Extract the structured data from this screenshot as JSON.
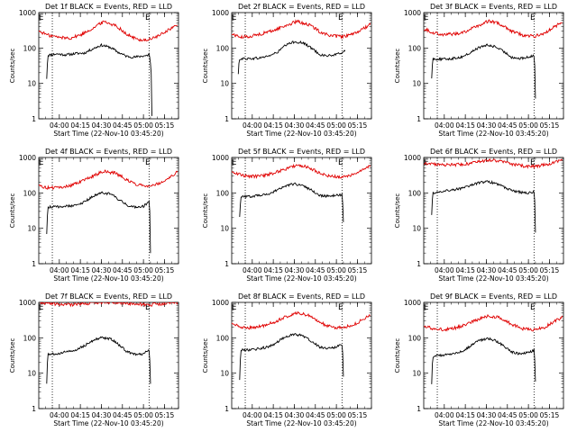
{
  "chart_data": [
    {
      "type": "line",
      "title": "Det 1f BLACK = Events, RED = LLD",
      "ylabel": "Counts/sec",
      "xlabel": "Start Time (22-Nov-10 03:45:20)",
      "yscale": "log",
      "ylim": [
        1,
        1000
      ],
      "xlim": [
        "03:45:20",
        "05:25:00"
      ],
      "x_ticks": [
        "04:00",
        "04:15",
        "04:30",
        "04:45",
        "05:00",
        "05:15"
      ],
      "y_ticks": [
        "1",
        "10",
        "100",
        "1000"
      ],
      "markers": [
        {
          "label": "E",
          "x": "03:47"
        },
        {
          "label": "E",
          "x": "05:03"
        }
      ],
      "vlines": [
        "03:55",
        "05:04"
      ],
      "series": [
        {
          "name": "BLACK = Events",
          "color": "#000000",
          "x": [
            "03:51",
            "03:52",
            "03:58",
            "04:05",
            "04:12",
            "04:18",
            "04:24",
            "04:30",
            "04:36",
            "04:42",
            "04:48",
            "04:54",
            "05:00",
            "05:03",
            "05:04",
            "05:06"
          ],
          "y": [
            14,
            62,
            68,
            64,
            70,
            72,
            95,
            120,
            105,
            75,
            58,
            55,
            60,
            62,
            70,
            1.2
          ]
        },
        {
          "name": "RED = LLD",
          "color": "#e00000",
          "x": [
            "03:45",
            "03:52",
            "04:00",
            "04:08",
            "04:16",
            "04:24",
            "04:32",
            "04:40",
            "04:48",
            "04:56",
            "05:04",
            "05:12",
            "05:18",
            "05:24"
          ],
          "y": [
            300,
            230,
            200,
            190,
            240,
            360,
            560,
            430,
            240,
            170,
            170,
            230,
            330,
            430
          ]
        }
      ]
    },
    {
      "type": "line",
      "title": "Det 2f BLACK = Events, RED = LLD",
      "ylabel": "Counts/sec",
      "xlabel": "Start Time (22-Nov-10 03:45:20)",
      "yscale": "log",
      "ylim": [
        1,
        1000
      ],
      "xlim": [
        "03:45:20",
        "05:25:00"
      ],
      "x_ticks": [
        "04:00",
        "04:15",
        "04:30",
        "04:45",
        "05:00",
        "05:15"
      ],
      "y_ticks": [
        "1",
        "10",
        "100",
        "1000"
      ],
      "markers": [
        {
          "label": "E",
          "x": "03:47"
        },
        {
          "label": "E",
          "x": "05:03"
        }
      ],
      "vlines": [
        "03:55",
        "05:04"
      ],
      "series": [
        {
          "name": "BLACK = Events",
          "color": "#000000",
          "x": [
            "03:50",
            "03:51",
            "03:58",
            "04:05",
            "04:12",
            "04:18",
            "04:24",
            "04:30",
            "04:36",
            "04:42",
            "04:48",
            "04:54",
            "05:00",
            "05:04",
            "05:06"
          ],
          "y": [
            18,
            50,
            50,
            52,
            60,
            75,
            120,
            150,
            140,
            100,
            65,
            60,
            65,
            75,
            80
          ]
        },
        {
          "name": "RED = LLD",
          "color": "#e00000",
          "x": [
            "03:45",
            "03:52",
            "04:00",
            "04:08",
            "04:16",
            "04:24",
            "04:32",
            "04:40",
            "04:48",
            "04:56",
            "05:04",
            "05:12",
            "05:18",
            "05:24"
          ],
          "y": [
            250,
            200,
            220,
            260,
            320,
            430,
            560,
            460,
            290,
            220,
            210,
            240,
            330,
            450
          ]
        }
      ]
    },
    {
      "type": "line",
      "title": "Det 3f BLACK = Events, RED = LLD",
      "ylabel": "Counts/sec",
      "xlabel": "Start Time (22-Nov-10 03:45:20)",
      "yscale": "log",
      "ylim": [
        1,
        1000
      ],
      "xlim": [
        "03:45:20",
        "05:25:00"
      ],
      "x_ticks": [
        "04:00",
        "04:15",
        "04:30",
        "04:45",
        "05:00",
        "05:15"
      ],
      "y_ticks": [
        "1",
        "10",
        "100",
        "1000"
      ],
      "markers": [
        {
          "label": "E",
          "x": "03:47"
        },
        {
          "label": "E",
          "x": "05:03"
        }
      ],
      "vlines": [
        "03:55",
        "05:04"
      ],
      "series": [
        {
          "name": "BLACK = Events",
          "color": "#000000",
          "x": [
            "03:51",
            "03:52",
            "03:58",
            "04:05",
            "04:12",
            "04:18",
            "04:24",
            "04:30",
            "04:36",
            "04:42",
            "04:48",
            "04:54",
            "05:00",
            "05:04",
            "05:05"
          ],
          "y": [
            15,
            50,
            48,
            50,
            55,
            70,
            100,
            120,
            110,
            80,
            55,
            50,
            55,
            60,
            4
          ]
        },
        {
          "name": "RED = LLD",
          "color": "#e00000",
          "x": [
            "03:45",
            "03:52",
            "04:00",
            "04:08",
            "04:16",
            "04:24",
            "04:32",
            "04:40",
            "04:48",
            "04:56",
            "05:04",
            "05:12",
            "05:18",
            "05:24"
          ],
          "y": [
            350,
            270,
            240,
            250,
            300,
            420,
            580,
            470,
            300,
            230,
            210,
            270,
            380,
            520
          ]
        }
      ]
    },
    {
      "type": "line",
      "title": "Det 4f BLACK = Events, RED = LLD",
      "ylabel": "Counts/sec",
      "xlabel": "Start Time (22-Nov-10 03:45:20)",
      "yscale": "log",
      "ylim": [
        1,
        1000
      ],
      "xlim": [
        "03:45:20",
        "05:25:00"
      ],
      "x_ticks": [
        "04:00",
        "04:15",
        "04:30",
        "04:45",
        "05:00",
        "05:15"
      ],
      "y_ticks": [
        "1",
        "10",
        "100",
        "1000"
      ],
      "markers": [
        {
          "label": "E",
          "x": "03:47"
        },
        {
          "label": "E",
          "x": "05:03"
        }
      ],
      "vlines": [
        "03:55",
        "05:04"
      ],
      "series": [
        {
          "name": "BLACK = Events",
          "color": "#000000",
          "x": [
            "03:51",
            "03:52",
            "03:58",
            "04:05",
            "04:12",
            "04:18",
            "04:24",
            "04:30",
            "04:36",
            "04:42",
            "04:48",
            "04:54",
            "05:00",
            "05:04",
            "05:05"
          ],
          "y": [
            7,
            40,
            40,
            42,
            45,
            55,
            80,
            100,
            95,
            65,
            45,
            40,
            42,
            55,
            2
          ]
        },
        {
          "name": "RED = LLD",
          "color": "#e00000",
          "x": [
            "03:45",
            "03:52",
            "04:00",
            "04:08",
            "04:16",
            "04:24",
            "04:32",
            "04:40",
            "04:48",
            "04:56",
            "05:04",
            "05:12",
            "05:18",
            "05:24"
          ],
          "y": [
            160,
            140,
            140,
            160,
            210,
            300,
            410,
            360,
            230,
            170,
            160,
            190,
            270,
            380
          ]
        }
      ]
    },
    {
      "type": "line",
      "title": "Det 5f BLACK = Events, RED = LLD",
      "ylabel": "Counts/sec",
      "xlabel": "Start Time (22-Nov-10 03:45:20)",
      "yscale": "log",
      "ylim": [
        1,
        1000
      ],
      "xlim": [
        "03:45:20",
        "05:25:00"
      ],
      "x_ticks": [
        "04:00",
        "04:15",
        "04:30",
        "04:45",
        "05:00",
        "05:15"
      ],
      "y_ticks": [
        "1",
        "10",
        "100",
        "1000"
      ],
      "markers": [
        {
          "label": "E",
          "x": "03:47"
        },
        {
          "label": "E",
          "x": "05:03"
        }
      ],
      "vlines": [
        "03:55",
        "05:04"
      ],
      "series": [
        {
          "name": "BLACK = Events",
          "color": "#000000",
          "x": [
            "03:51",
            "03:52",
            "03:58",
            "04:05",
            "04:12",
            "04:18",
            "04:24",
            "04:30",
            "04:36",
            "04:42",
            "04:48",
            "04:54",
            "05:00",
            "05:04",
            "05:05"
          ],
          "y": [
            20,
            80,
            80,
            85,
            95,
            120,
            160,
            180,
            160,
            120,
            85,
            80,
            85,
            90,
            15
          ]
        },
        {
          "name": "RED = LLD",
          "color": "#e00000",
          "x": [
            "03:45",
            "03:52",
            "04:00",
            "04:08",
            "04:16",
            "04:24",
            "04:32",
            "04:40",
            "04:48",
            "04:56",
            "05:04",
            "05:12",
            "05:18",
            "05:24"
          ],
          "y": [
            400,
            320,
            290,
            310,
            370,
            480,
            620,
            520,
            360,
            290,
            280,
            330,
            450,
            600
          ]
        }
      ]
    },
    {
      "type": "line",
      "title": "Det 6f BLACK = Events, RED = LLD",
      "ylabel": "Counts/sec",
      "xlabel": "Start Time (22-Nov-10 03:45:20)",
      "yscale": "log",
      "ylim": [
        1,
        1000
      ],
      "xlim": [
        "03:45:20",
        "05:25:00"
      ],
      "x_ticks": [
        "04:00",
        "04:15",
        "04:30",
        "04:45",
        "05:00",
        "05:15"
      ],
      "y_ticks": [
        "1",
        "10",
        "100",
        "1000"
      ],
      "markers": [
        {
          "label": "E",
          "x": "03:47"
        },
        {
          "label": "E",
          "x": "05:03"
        }
      ],
      "vlines": [
        "03:55",
        "05:04"
      ],
      "series": [
        {
          "name": "BLACK = Events",
          "color": "#000000",
          "x": [
            "03:51",
            "03:52",
            "03:58",
            "04:05",
            "04:12",
            "04:18",
            "04:24",
            "04:30",
            "04:36",
            "04:42",
            "04:48",
            "04:54",
            "05:00",
            "05:04",
            "05:05"
          ],
          "y": [
            25,
            100,
            110,
            120,
            135,
            155,
            190,
            210,
            190,
            150,
            115,
            105,
            100,
            105,
            8
          ]
        },
        {
          "name": "RED = LLD",
          "color": "#e00000",
          "x": [
            "03:45",
            "03:52",
            "04:00",
            "04:08",
            "04:16",
            "04:24",
            "04:32",
            "04:40",
            "04:48",
            "04:56",
            "05:04",
            "05:12",
            "05:18",
            "05:24"
          ],
          "y": [
            700,
            660,
            620,
            620,
            660,
            740,
            850,
            780,
            650,
            580,
            560,
            620,
            700,
            820
          ]
        }
      ]
    },
    {
      "type": "line",
      "title": "Det 7f BLACK = Events, RED = LLD",
      "ylabel": "Counts/sec",
      "xlabel": "Start Time (22-Nov-10 03:45:20)",
      "yscale": "log",
      "ylim": [
        1,
        1000
      ],
      "xlim": [
        "03:45:20",
        "05:25:00"
      ],
      "x_ticks": [
        "04:00",
        "04:15",
        "04:30",
        "04:45",
        "05:00",
        "05:15"
      ],
      "y_ticks": [
        "1",
        "10",
        "100",
        "1000"
      ],
      "markers": [
        {
          "label": "E",
          "x": "03:47"
        },
        {
          "label": "E",
          "x": "05:03"
        }
      ],
      "vlines": [
        "03:55",
        "05:04"
      ],
      "series": [
        {
          "name": "BLACK = Events",
          "color": "#000000",
          "x": [
            "03:51",
            "03:52",
            "03:58",
            "04:05",
            "04:12",
            "04:18",
            "04:24",
            "04:30",
            "04:36",
            "04:42",
            "04:48",
            "04:54",
            "05:00",
            "05:04",
            "05:05"
          ],
          "y": [
            5,
            35,
            35,
            40,
            45,
            60,
            85,
            100,
            95,
            65,
            40,
            35,
            35,
            45,
            5
          ]
        },
        {
          "name": "RED = LLD",
          "color": "#e00000",
          "x": [
            "03:45",
            "03:52",
            "04:00",
            "04:08",
            "04:16",
            "04:24",
            "04:32",
            "04:40",
            "04:48",
            "04:56",
            "05:04",
            "05:12",
            "05:18",
            "05:24"
          ],
          "y": [
            1000,
            950,
            880,
            860,
            900,
            980,
            1000,
            1000,
            960,
            880,
            860,
            900,
            980,
            1000
          ]
        }
      ]
    },
    {
      "type": "line",
      "title": "Det 8f BLACK = Events, RED = LLD",
      "ylabel": "Counts/sec",
      "xlabel": "Start Time (22-Nov-10 03:45:20)",
      "yscale": "log",
      "ylim": [
        1,
        1000
      ],
      "xlim": [
        "03:45:20",
        "05:25:00"
      ],
      "x_ticks": [
        "04:00",
        "04:15",
        "04:30",
        "04:45",
        "05:00",
        "05:15"
      ],
      "y_ticks": [
        "1",
        "10",
        "100",
        "1000"
      ],
      "markers": [
        {
          "label": "E",
          "x": "03:47"
        },
        {
          "label": "E",
          "x": "05:03"
        }
      ],
      "vlines": [
        "03:55",
        "05:04"
      ],
      "series": [
        {
          "name": "BLACK = Events",
          "color": "#000000",
          "x": [
            "03:51",
            "03:52",
            "03:58",
            "04:05",
            "04:12",
            "04:18",
            "04:24",
            "04:30",
            "04:36",
            "04:42",
            "04:48",
            "04:54",
            "05:00",
            "05:04",
            "05:05"
          ],
          "y": [
            6,
            45,
            45,
            50,
            55,
            75,
            110,
            125,
            115,
            80,
            55,
            50,
            55,
            65,
            8
          ]
        },
        {
          "name": "RED = LLD",
          "color": "#e00000",
          "x": [
            "03:45",
            "03:52",
            "04:00",
            "04:08",
            "04:16",
            "04:24",
            "04:32",
            "04:40",
            "04:48",
            "04:56",
            "05:04",
            "05:12",
            "05:18",
            "05:24"
          ],
          "y": [
            250,
            200,
            190,
            220,
            280,
            390,
            520,
            420,
            270,
            200,
            190,
            230,
            310,
            420
          ]
        }
      ]
    },
    {
      "type": "line",
      "title": "Det 9f BLACK = Events, RED = LLD",
      "ylabel": "Counts/sec",
      "xlabel": "Start Time (22-Nov-10 03:45:20)",
      "yscale": "log",
      "ylim": [
        1,
        1000
      ],
      "xlim": [
        "03:45:20",
        "05:25:00"
      ],
      "x_ticks": [
        "04:00",
        "04:15",
        "04:30",
        "04:45",
        "05:00",
        "05:15"
      ],
      "y_ticks": [
        "1",
        "10",
        "100",
        "1000"
      ],
      "markers": [
        {
          "label": "E",
          "x": "03:47"
        },
        {
          "label": "E",
          "x": "05:03"
        }
      ],
      "vlines": [
        "03:55",
        "05:04"
      ],
      "series": [
        {
          "name": "BLACK = Events",
          "color": "#000000",
          "x": [
            "03:51",
            "03:52",
            "03:58",
            "04:05",
            "04:12",
            "04:18",
            "04:24",
            "04:30",
            "04:36",
            "04:42",
            "04:48",
            "04:54",
            "05:00",
            "05:04",
            "05:05"
          ],
          "y": [
            5,
            30,
            32,
            35,
            40,
            55,
            80,
            95,
            85,
            60,
            40,
            35,
            38,
            45,
            6
          ]
        },
        {
          "name": "RED = LLD",
          "color": "#e00000",
          "x": [
            "03:45",
            "03:52",
            "04:00",
            "04:08",
            "04:16",
            "04:24",
            "04:32",
            "04:40",
            "04:48",
            "04:56",
            "05:04",
            "05:12",
            "05:18",
            "05:24"
          ],
          "y": [
            220,
            180,
            170,
            190,
            240,
            330,
            420,
            360,
            240,
            180,
            170,
            200,
            280,
            380
          ]
        }
      ]
    }
  ]
}
